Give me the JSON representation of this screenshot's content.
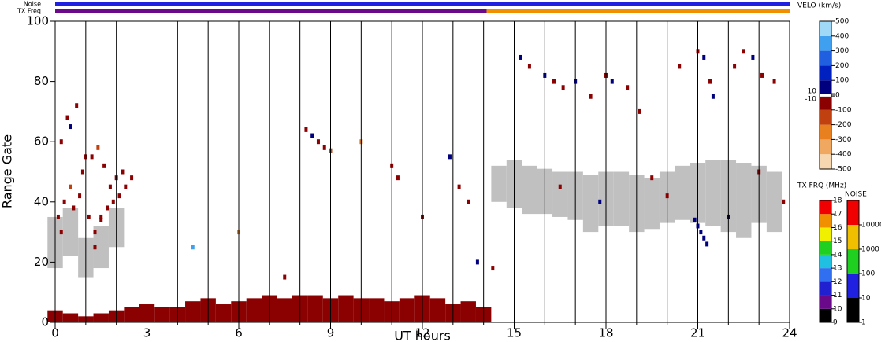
{
  "chart_data": {
    "type": "scatter",
    "x_label": "UT hours",
    "y_label": "Range Gate",
    "xlim": [
      0,
      24
    ],
    "ylim": [
      0,
      100
    ],
    "xticks": [
      0,
      3,
      6,
      9,
      12,
      15,
      18,
      21,
      24
    ],
    "yticks": [
      0,
      20,
      40,
      60,
      80,
      100
    ],
    "points": {
      "x": [
        0.2,
        0.3,
        0.5,
        0.6,
        0.8,
        0.9,
        0.4,
        0.7,
        1.1,
        1.3,
        1.5,
        1.7,
        1.9,
        2.1,
        2.3,
        2.5,
        1.2,
        1.4,
        1.6,
        1.8,
        2.0,
        2.2,
        1.3,
        1.0,
        0.5,
        0.1,
        0.2,
        1.5,
        8.2,
        8.4,
        8.6,
        8.8,
        9.0,
        10.0,
        11.0,
        11.2,
        12.9,
        13.2,
        13.5,
        15.2,
        15.5,
        16.0,
        16.3,
        16.6,
        17.0,
        17.5,
        18.0,
        18.2,
        18.7,
        19.1,
        20.4,
        21.0,
        21.2,
        21.4,
        21.5,
        22.2,
        22.5,
        22.8,
        23.1,
        23.5,
        20.9,
        21.0,
        21.1,
        21.2,
        21.3,
        16.5,
        17.8,
        19.5,
        20.0,
        22.0,
        23.0,
        23.8,
        4.5,
        6.0,
        7.5,
        12.0,
        13.8,
        14.3
      ],
      "y": [
        30,
        40,
        45,
        38,
        42,
        50,
        68,
        72,
        35,
        30,
        34,
        38,
        40,
        42,
        45,
        48,
        55,
        58,
        52,
        45,
        48,
        50,
        25,
        55,
        65,
        35,
        60,
        35,
        64,
        62,
        60,
        58,
        57,
        60,
        52,
        48,
        55,
        45,
        40,
        88,
        85,
        82,
        80,
        78,
        80,
        75,
        82,
        80,
        78,
        70,
        85,
        90,
        88,
        80,
        75,
        85,
        90,
        88,
        82,
        80,
        34,
        32,
        30,
        28,
        26,
        45,
        40,
        48,
        42,
        35,
        50,
        40,
        25,
        30,
        15,
        35,
        20,
        18
      ],
      "velocity": [
        -80,
        -80,
        -120,
        -80,
        -60,
        -80,
        -100,
        -80,
        -80,
        -80,
        -80,
        -60,
        -80,
        -100,
        -80,
        -80,
        -80,
        -120,
        -80,
        -80,
        -80,
        -80,
        -60,
        -80,
        50,
        -80,
        -80,
        -80,
        -80,
        60,
        -80,
        -80,
        -150,
        -300,
        -80,
        -80,
        60,
        -80,
        -80,
        60,
        -80,
        60,
        -80,
        -80,
        60,
        -80,
        -80,
        60,
        -80,
        -80,
        -80,
        -80,
        60,
        -80,
        60,
        -80,
        -80,
        60,
        -80,
        -80,
        60,
        60,
        60,
        60,
        60,
        -80,
        60,
        -80,
        -80,
        60,
        -80,
        -80,
        350,
        -250,
        -80,
        -80,
        60,
        -80
      ]
    },
    "ground_scatter": {
      "color": "#c0c0c0",
      "x": [
        0,
        0.5,
        1.0,
        1.5,
        2.0,
        14.5,
        15,
        15.5,
        16,
        16.5,
        17,
        17.5,
        18,
        18.5,
        19,
        19.5,
        20,
        20.5,
        21,
        21.5,
        22,
        22.5,
        23,
        23.5
      ],
      "low": [
        18,
        22,
        15,
        18,
        25,
        40,
        38,
        36,
        36,
        35,
        34,
        30,
        32,
        32,
        30,
        31,
        33,
        34,
        33,
        32,
        30,
        28,
        33,
        30
      ],
      "high": [
        35,
        38,
        28,
        32,
        38,
        52,
        54,
        52,
        51,
        50,
        50,
        49,
        50,
        50,
        49,
        48,
        50,
        52,
        53,
        54,
        54,
        53,
        52,
        50
      ]
    },
    "near_range": {
      "color": "#8b0000",
      "x": [
        0,
        0.5,
        1,
        1.5,
        2,
        2.5,
        3,
        3.5,
        4,
        4.5,
        5,
        5.5,
        6,
        6.5,
        7,
        7.5,
        8,
        8.5,
        9,
        9.5,
        10,
        10.5,
        11,
        11.5,
        12,
        12.5,
        13,
        13.5,
        14
      ],
      "top": [
        4,
        3,
        2,
        3,
        4,
        5,
        6,
        5,
        5,
        7,
        8,
        6,
        7,
        8,
        9,
        8,
        9,
        9,
        8,
        9,
        8,
        8,
        7,
        8,
        9,
        8,
        6,
        7,
        5
      ]
    },
    "noise_bar": {
      "label": "Noise",
      "x": [
        0
      ],
      "level": [
        50
      ]
    },
    "freq_bar": {
      "label": "TX Freq",
      "x": [
        0,
        14.1
      ],
      "mhz": [
        10.5,
        16.5
      ]
    },
    "velocity_colorbar": {
      "title": "VELO (km/s)",
      "lim": [
        -500,
        500
      ],
      "ticks": [
        500,
        400,
        300,
        200,
        100,
        10,
        0,
        -10,
        -100,
        -200,
        -300,
        -400,
        -500
      ],
      "colors": [
        "#f7d7b0",
        "#f0a860",
        "#e88020",
        "#c04010",
        "#8b0000",
        "#00007f",
        "#0020c0",
        "#2060e0",
        "#40a0f0",
        "#a0d8f8"
      ]
    },
    "freq_colorbar": {
      "title": "TX FRQ (MHz)",
      "lim": [
        9,
        18
      ],
      "ticks": [
        9,
        10,
        11,
        12,
        13,
        14,
        15,
        16,
        17,
        18
      ],
      "colors": [
        "#000000",
        "#6a0a8a",
        "#2020d0",
        "#3070f0",
        "#20c0e0",
        "#20d020",
        "#f0f000",
        "#f09000",
        "#f00000"
      ]
    },
    "noise_colorbar": {
      "title": "NOISE",
      "lim": [
        1,
        100000
      ],
      "log": true,
      "ticks": [
        1,
        10,
        100,
        1000,
        10000
      ],
      "colors": [
        "#000000",
        "#2020e0",
        "#20d020",
        "#f0c000",
        "#f00000"
      ]
    }
  }
}
